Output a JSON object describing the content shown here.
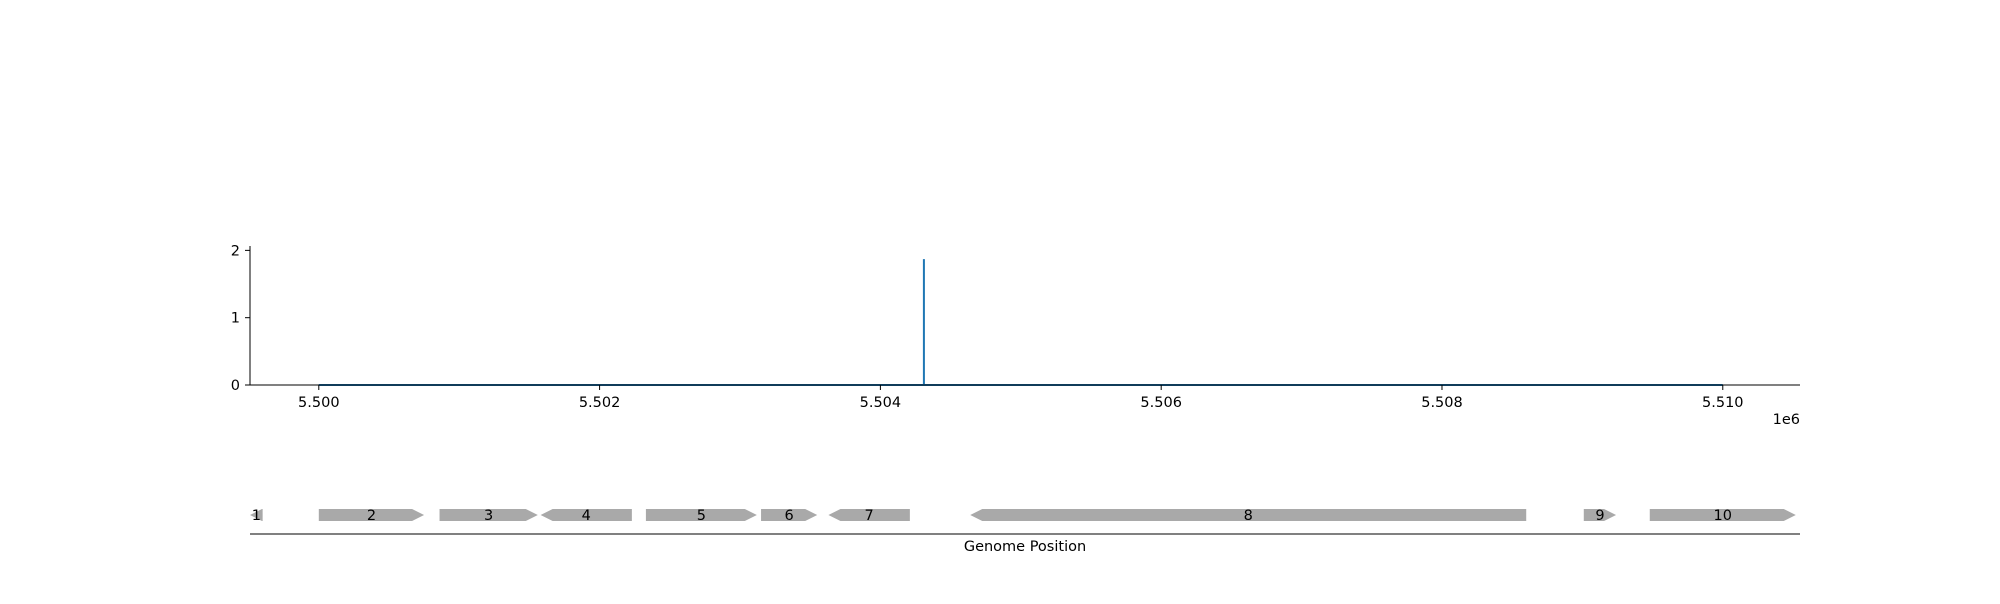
{
  "chart_data": [
    {
      "type": "line",
      "title": "",
      "xlabel": "",
      "ylabel": "",
      "x_offset_label": "1e6",
      "xlim": [
        5.49951,
        5.51055
      ],
      "ylim": [
        0,
        2.05
      ],
      "xticks": [
        {
          "value": 5.5,
          "label": "5.500"
        },
        {
          "value": 5.502,
          "label": "5.502"
        },
        {
          "value": 5.504,
          "label": "5.504"
        },
        {
          "value": 5.506,
          "label": "5.506"
        },
        {
          "value": 5.508,
          "label": "5.508"
        },
        {
          "value": 5.51,
          "label": "5.510"
        }
      ],
      "yticks": [
        {
          "value": 0,
          "label": "0"
        },
        {
          "value": 1,
          "label": "1"
        },
        {
          "value": 2,
          "label": "2"
        }
      ],
      "grid": false,
      "series": [
        {
          "color": "#1f77b4",
          "x": [
            5.5,
            5.50431,
            5.50431,
            5.50431,
            5.51
          ],
          "y": [
            0,
            0,
            1.87,
            0,
            0
          ]
        }
      ]
    },
    {
      "type": "gene_track",
      "xlabel": "Genome Position",
      "color": "#a9a9a9",
      "genes": [
        {
          "label": "1",
          "start": 5.4995,
          "end": 5.4996,
          "strand": "-"
        },
        {
          "label": "2",
          "start": 5.5,
          "end": 5.50075,
          "strand": "+"
        },
        {
          "label": "3",
          "start": 5.50086,
          "end": 5.50156,
          "strand": "+"
        },
        {
          "label": "4",
          "start": 5.50158,
          "end": 5.50223,
          "strand": "-"
        },
        {
          "label": "5",
          "start": 5.50233,
          "end": 5.50312,
          "strand": "+"
        },
        {
          "label": "6",
          "start": 5.50315,
          "end": 5.50355,
          "strand": "+"
        },
        {
          "label": "7",
          "start": 5.50363,
          "end": 5.50421,
          "strand": "-"
        },
        {
          "label": "8",
          "start": 5.50464,
          "end": 5.5086,
          "strand": "-"
        },
        {
          "label": "9",
          "start": 5.50901,
          "end": 5.50924,
          "strand": "+"
        },
        {
          "label": "10",
          "start": 5.50948,
          "end": 5.51052,
          "strand": "+"
        }
      ]
    }
  ]
}
